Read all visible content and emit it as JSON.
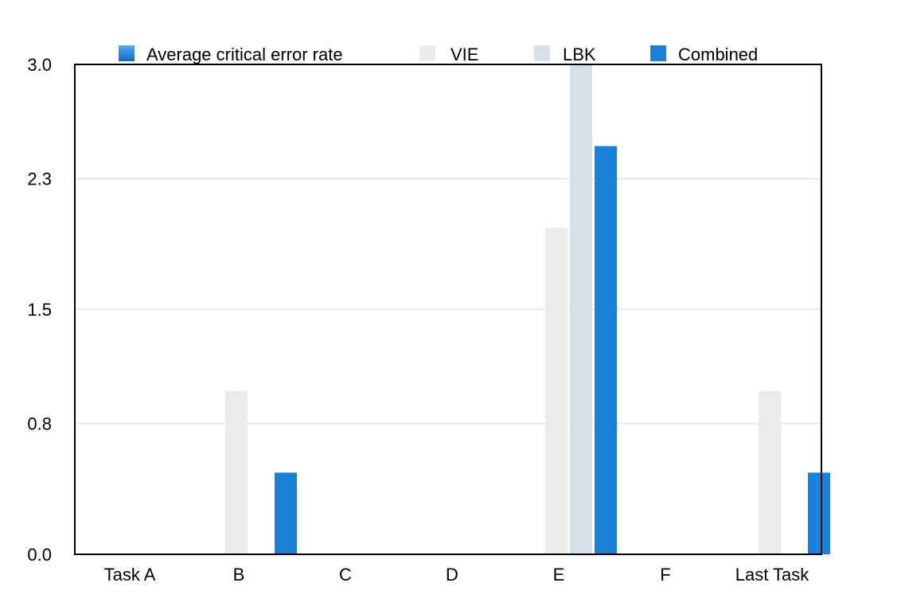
{
  "chart_data": {
    "type": "bar",
    "title": "",
    "xlabel": "",
    "ylabel": "",
    "categories": [
      "Task A",
      "B",
      "C",
      "D",
      "E",
      "F",
      "Last Task"
    ],
    "ylim": [
      0,
      3.0
    ],
    "yticks": [
      "0.0",
      "0.8",
      "1.5",
      "2.3",
      "3.0"
    ],
    "legend": {
      "placement": "top",
      "entries": [
        {
          "label": "Average critical error rate",
          "color": "#1a80d8",
          "gradient": true
        },
        {
          "label": "VIE",
          "color": "#ebebea"
        },
        {
          "label": "LBK",
          "color": "#d5e0e8"
        },
        {
          "label": "Combined",
          "color": "#1a80d8"
        }
      ]
    },
    "series": [
      {
        "name": "VIE",
        "color": "#ebebea",
        "values": [
          0,
          1.0,
          0,
          0,
          2.0,
          0,
          1.0
        ]
      },
      {
        "name": "LBK",
        "color": "#d5e0e8",
        "values": [
          0,
          0,
          0,
          0,
          3.0,
          0,
          0
        ]
      },
      {
        "name": "Combined",
        "color": "#1a80d8",
        "values": [
          0,
          0.5,
          0,
          0,
          2.5,
          0,
          0.5
        ]
      }
    ],
    "grid": true
  }
}
